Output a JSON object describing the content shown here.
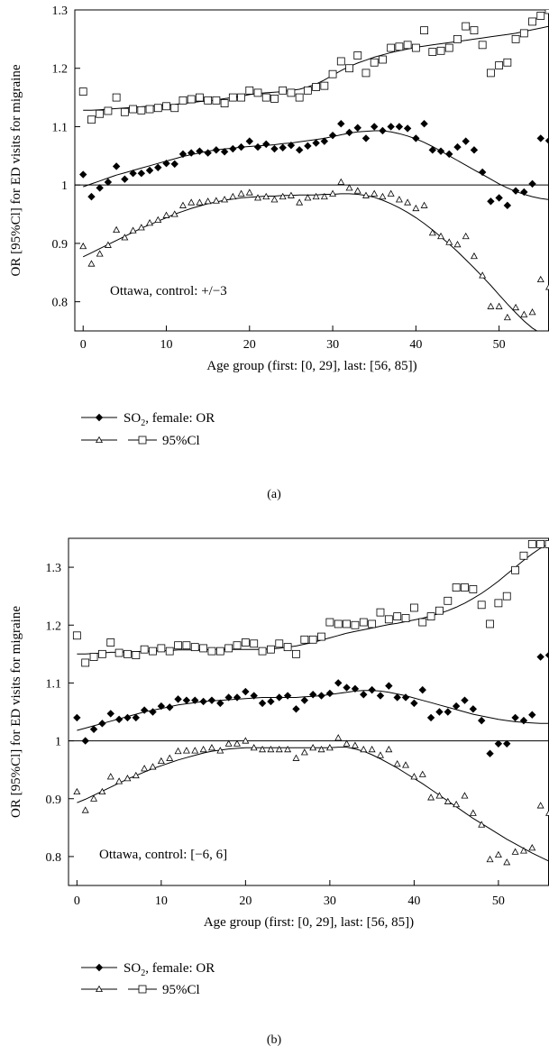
{
  "legend": {
    "or_label": "SO",
    "or_sub": "2",
    "or_suffix": ", female: OR",
    "ci_label": "95%Cl"
  },
  "chart_data": [
    {
      "type": "scatter",
      "caption": "(a)",
      "annotation": "Ottawa, control: +/−3",
      "xlabel": "Age group (first: [0, 29], last: [56, 85])",
      "ylabel": "OR [95%Cl] for ED visits for migraine",
      "xlim": [
        -1,
        56
      ],
      "ylim": [
        0.75,
        1.3
      ],
      "xticks": [
        0,
        10,
        20,
        30,
        40,
        50
      ],
      "yticks": [
        0.8,
        0.9,
        1,
        1.1,
        1.2,
        1.3
      ],
      "ytick_labels": [
        "0.8",
        "0.9",
        "1",
        "1.1",
        "1.2",
        "1.3"
      ],
      "reference_line": 1,
      "x": [
        0,
        1,
        2,
        3,
        4,
        5,
        6,
        7,
        8,
        9,
        10,
        11,
        12,
        13,
        14,
        15,
        16,
        17,
        18,
        19,
        20,
        21,
        22,
        23,
        24,
        25,
        26,
        27,
        28,
        29,
        30,
        31,
        32,
        33,
        34,
        35,
        36,
        37,
        38,
        39,
        40,
        41,
        42,
        43,
        44,
        45,
        46,
        47,
        48,
        49,
        50,
        51,
        52,
        53,
        54,
        55,
        56
      ],
      "series": [
        {
          "name": "SO2, female: OR",
          "marker": "diamond",
          "values": [
            1.018,
            0.98,
            0.995,
            1.005,
            1.032,
            1.01,
            1.02,
            1.02,
            1.025,
            1.03,
            1.037,
            1.036,
            1.053,
            1.055,
            1.058,
            1.055,
            1.06,
            1.057,
            1.062,
            1.065,
            1.075,
            1.065,
            1.07,
            1.062,
            1.064,
            1.068,
            1.06,
            1.067,
            1.072,
            1.075,
            1.085,
            1.105,
            1.09,
            1.098,
            1.08,
            1.1,
            1.093,
            1.1,
            1.1,
            1.097,
            1.08,
            1.105,
            1.06,
            1.058,
            1.053,
            1.065,
            1.075,
            1.06,
            1.022,
            0.972,
            0.978,
            0.965,
            0.99,
            0.988,
            1.002,
            1.08,
            1.076
          ],
          "fit": [
            0.997,
            1.002,
            1.007,
            1.012,
            1.017,
            1.021,
            1.025,
            1.029,
            1.033,
            1.037,
            1.041,
            1.045,
            1.049,
            1.052,
            1.055,
            1.058,
            1.06,
            1.062,
            1.063,
            1.065,
            1.066,
            1.067,
            1.068,
            1.069,
            1.071,
            1.072,
            1.074,
            1.076,
            1.078,
            1.08,
            1.083,
            1.086,
            1.089,
            1.091,
            1.092,
            1.093,
            1.093,
            1.091,
            1.088,
            1.084,
            1.079,
            1.073,
            1.066,
            1.058,
            1.05,
            1.042,
            1.034,
            1.026,
            1.018,
            1.01,
            1.002,
            0.995,
            0.989,
            0.984,
            0.98,
            0.977,
            0.975
          ]
        },
        {
          "name": "95%Cl lower",
          "marker": "triangle",
          "values": [
            0.895,
            0.865,
            0.882,
            0.897,
            0.923,
            0.91,
            0.922,
            0.927,
            0.935,
            0.94,
            0.948,
            0.95,
            0.965,
            0.97,
            0.97,
            0.972,
            0.973,
            0.975,
            0.98,
            0.985,
            0.987,
            0.978,
            0.98,
            0.975,
            0.98,
            0.982,
            0.97,
            0.978,
            0.98,
            0.98,
            0.985,
            1.005,
            0.995,
            0.99,
            0.982,
            0.985,
            0.98,
            0.985,
            0.975,
            0.97,
            0.96,
            0.965,
            0.918,
            0.912,
            0.902,
            0.898,
            0.912,
            0.878,
            0.845,
            0.792,
            0.792,
            0.773,
            0.79,
            0.778,
            0.782,
            0.838,
            0.825
          ],
          "fit": [
            0.877,
            0.884,
            0.891,
            0.898,
            0.905,
            0.912,
            0.919,
            0.926,
            0.932,
            0.938,
            0.944,
            0.95,
            0.955,
            0.96,
            0.964,
            0.968,
            0.971,
            0.974,
            0.976,
            0.978,
            0.979,
            0.98,
            0.981,
            0.981,
            0.982,
            0.982,
            0.983,
            0.983,
            0.983,
            0.984,
            0.984,
            0.985,
            0.985,
            0.984,
            0.982,
            0.979,
            0.974,
            0.968,
            0.961,
            0.953,
            0.944,
            0.934,
            0.923,
            0.911,
            0.899,
            0.886,
            0.872,
            0.858,
            0.843,
            0.828,
            0.812,
            0.796,
            0.781,
            0.767,
            0.755,
            0.746,
            0.74
          ]
        },
        {
          "name": "95%Cl upper",
          "marker": "square",
          "values": [
            1.16,
            1.112,
            1.122,
            1.127,
            1.15,
            1.125,
            1.13,
            1.128,
            1.13,
            1.132,
            1.135,
            1.132,
            1.145,
            1.147,
            1.15,
            1.145,
            1.145,
            1.14,
            1.15,
            1.15,
            1.162,
            1.158,
            1.15,
            1.148,
            1.162,
            1.158,
            1.15,
            1.162,
            1.168,
            1.17,
            1.19,
            1.212,
            1.2,
            1.222,
            1.192,
            1.21,
            1.215,
            1.235,
            1.237,
            1.24,
            1.235,
            1.265,
            1.228,
            1.23,
            1.235,
            1.25,
            1.272,
            1.265,
            1.24,
            1.192,
            1.205,
            1.21,
            1.25,
            1.26,
            1.28,
            1.29,
            1.3
          ],
          "fit": [
            1.128,
            1.128,
            1.129,
            1.13,
            1.131,
            1.132,
            1.133,
            1.134,
            1.135,
            1.136,
            1.137,
            1.138,
            1.14,
            1.141,
            1.143,
            1.144,
            1.146,
            1.148,
            1.15,
            1.152,
            1.155,
            1.157,
            1.158,
            1.159,
            1.16,
            1.162,
            1.164,
            1.168,
            1.173,
            1.18,
            1.188,
            1.196,
            1.203,
            1.209,
            1.214,
            1.219,
            1.223,
            1.227,
            1.23,
            1.233,
            1.236,
            1.238,
            1.24,
            1.242,
            1.244,
            1.246,
            1.248,
            1.25,
            1.252,
            1.254,
            1.256,
            1.258,
            1.26,
            1.263,
            1.266,
            1.269,
            1.272
          ]
        }
      ]
    },
    {
      "type": "scatter",
      "caption": "(b)",
      "annotation": "Ottawa, control: [−6, 6]",
      "xlabel": "Age group (first: [0, 29], last: [56, 85])",
      "ylabel": "OR [95%Cl] for ED visits for migraine",
      "xlim": [
        -1,
        56
      ],
      "ylim": [
        0.75,
        1.35
      ],
      "xticks": [
        0,
        10,
        20,
        30,
        40,
        50
      ],
      "yticks": [
        0.8,
        0.9,
        1,
        1.1,
        1.2,
        1.3
      ],
      "ytick_labels": [
        "0.8",
        "0.9",
        "1",
        "1.1",
        "1.2",
        "1.3"
      ],
      "reference_line": 1,
      "x": [
        0,
        1,
        2,
        3,
        4,
        5,
        6,
        7,
        8,
        9,
        10,
        11,
        12,
        13,
        14,
        15,
        16,
        17,
        18,
        19,
        20,
        21,
        22,
        23,
        24,
        25,
        26,
        27,
        28,
        29,
        30,
        31,
        32,
        33,
        34,
        35,
        36,
        37,
        38,
        39,
        40,
        41,
        42,
        43,
        44,
        45,
        46,
        47,
        48,
        49,
        50,
        51,
        52,
        53,
        54,
        55,
        56
      ],
      "series": [
        {
          "name": "SO2, female: OR",
          "marker": "diamond",
          "values": [
            1.04,
            1.0,
            1.02,
            1.03,
            1.047,
            1.037,
            1.04,
            1.04,
            1.053,
            1.05,
            1.06,
            1.058,
            1.072,
            1.07,
            1.07,
            1.068,
            1.07,
            1.065,
            1.075,
            1.075,
            1.085,
            1.078,
            1.065,
            1.068,
            1.075,
            1.078,
            1.055,
            1.07,
            1.08,
            1.078,
            1.082,
            1.1,
            1.092,
            1.09,
            1.08,
            1.088,
            1.078,
            1.095,
            1.075,
            1.075,
            1.065,
            1.088,
            1.04,
            1.05,
            1.05,
            1.06,
            1.07,
            1.055,
            1.035,
            0.978,
            0.995,
            0.995,
            1.04,
            1.035,
            1.045,
            1.145,
            1.148
          ],
          "fit": [
            1.018,
            1.022,
            1.026,
            1.03,
            1.034,
            1.038,
            1.042,
            1.046,
            1.05,
            1.053,
            1.056,
            1.059,
            1.062,
            1.064,
            1.066,
            1.068,
            1.069,
            1.07,
            1.071,
            1.072,
            1.073,
            1.074,
            1.075,
            1.075,
            1.075,
            1.075,
            1.075,
            1.076,
            1.077,
            1.078,
            1.08,
            1.082,
            1.084,
            1.086,
            1.087,
            1.087,
            1.086,
            1.084,
            1.081,
            1.078,
            1.074,
            1.07,
            1.066,
            1.062,
            1.058,
            1.054,
            1.05,
            1.046,
            1.043,
            1.04,
            1.037,
            1.035,
            1.033,
            1.032,
            1.031,
            1.03,
            1.03
          ]
        },
        {
          "name": "95%Cl lower",
          "marker": "triangle",
          "values": [
            0.912,
            0.88,
            0.9,
            0.912,
            0.938,
            0.93,
            0.935,
            0.94,
            0.952,
            0.955,
            0.965,
            0.97,
            0.982,
            0.983,
            0.983,
            0.985,
            0.988,
            0.983,
            0.995,
            0.995,
            1.0,
            0.988,
            0.985,
            0.985,
            0.985,
            0.985,
            0.97,
            0.98,
            0.988,
            0.985,
            0.988,
            1.005,
            0.995,
            0.992,
            0.985,
            0.985,
            0.975,
            0.985,
            0.96,
            0.958,
            0.938,
            0.942,
            0.902,
            0.905,
            0.895,
            0.89,
            0.905,
            0.875,
            0.855,
            0.795,
            0.803,
            0.79,
            0.808,
            0.81,
            0.815,
            0.888,
            0.875
          ],
          "fit": [
            0.893,
            0.899,
            0.906,
            0.913,
            0.92,
            0.927,
            0.934,
            0.94,
            0.946,
            0.952,
            0.957,
            0.962,
            0.967,
            0.971,
            0.975,
            0.979,
            0.982,
            0.984,
            0.986,
            0.987,
            0.988,
            0.988,
            0.988,
            0.988,
            0.988,
            0.988,
            0.988,
            0.988,
            0.988,
            0.988,
            0.988,
            0.989,
            0.989,
            0.986,
            0.982,
            0.976,
            0.969,
            0.961,
            0.953,
            0.944,
            0.935,
            0.926,
            0.916,
            0.906,
            0.896,
            0.886,
            0.876,
            0.866,
            0.857,
            0.848,
            0.839,
            0.83,
            0.822,
            0.814,
            0.806,
            0.799,
            0.792
          ]
        },
        {
          "name": "95%Cl upper",
          "marker": "square",
          "values": [
            1.182,
            1.135,
            1.145,
            1.15,
            1.17,
            1.152,
            1.15,
            1.148,
            1.158,
            1.155,
            1.16,
            1.155,
            1.165,
            1.165,
            1.162,
            1.16,
            1.155,
            1.155,
            1.16,
            1.165,
            1.17,
            1.168,
            1.155,
            1.158,
            1.168,
            1.162,
            1.15,
            1.175,
            1.175,
            1.18,
            1.205,
            1.202,
            1.202,
            1.2,
            1.205,
            1.202,
            1.222,
            1.21,
            1.215,
            1.212,
            1.23,
            1.205,
            1.215,
            1.225,
            1.242,
            1.265,
            1.265,
            1.262,
            1.235,
            1.202,
            1.238,
            1.25,
            1.295,
            1.32,
            1.34,
            1.34,
            1.34
          ],
          "fit": [
            1.15,
            1.15,
            1.151,
            1.152,
            1.153,
            1.153,
            1.154,
            1.154,
            1.155,
            1.155,
            1.156,
            1.156,
            1.157,
            1.157,
            1.157,
            1.157,
            1.158,
            1.158,
            1.158,
            1.158,
            1.158,
            1.158,
            1.158,
            1.159,
            1.16,
            1.162,
            1.164,
            1.167,
            1.17,
            1.174,
            1.178,
            1.182,
            1.186,
            1.189,
            1.192,
            1.195,
            1.198,
            1.201,
            1.203,
            1.206,
            1.209,
            1.212,
            1.216,
            1.22,
            1.225,
            1.231,
            1.238,
            1.246,
            1.255,
            1.265,
            1.276,
            1.288,
            1.3,
            1.312,
            1.323,
            1.333,
            1.341
          ]
        }
      ]
    }
  ]
}
